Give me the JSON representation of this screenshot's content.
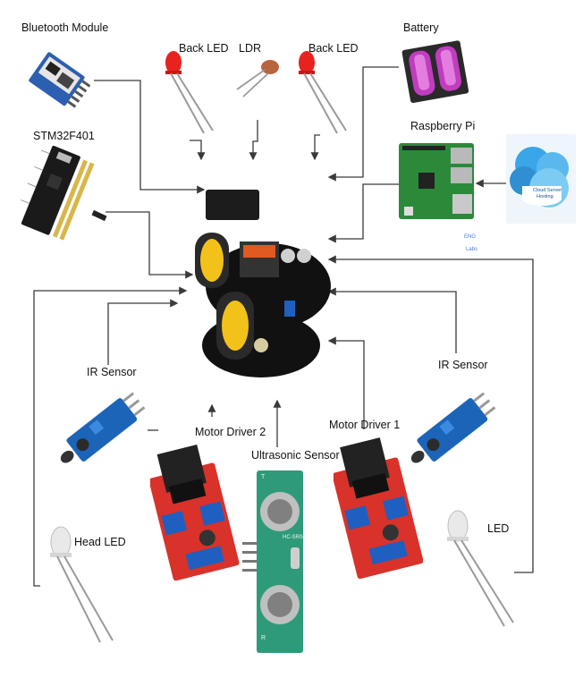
{
  "labels": {
    "bluetooth": "Bluetooth Module",
    "stm32": "STM32F401",
    "back_led_left": "Back LED",
    "ldr": "LDR",
    "back_led_right": "Back LED",
    "battery": "Battery",
    "raspberry_pi": "Raspberry Pi",
    "ir_sensor_left": "IR Sensor",
    "ir_sensor_right": "IR Sensor",
    "motor_driver_2": "Motor Driver 2",
    "motor_driver_1": "Motor Driver 1",
    "ultrasonic": "Ultrasonic Sensor",
    "head_led": "Head LED",
    "led": "LED"
  },
  "cloud": {
    "text_line1": "Cloud Server",
    "text_line2": "Hosting"
  },
  "pi_watermark": {
    "line1": "ENG",
    "line2": "Labs"
  },
  "ultrasonic_marks": {
    "model": "HC-SR04",
    "t": "T",
    "r": "R"
  },
  "colors": {
    "wire": "#3a3a3a",
    "led_red": "#e8231f",
    "board_blue": "#1c64b8",
    "board_red": "#d8322a",
    "pi_green": "#2a8a3a",
    "battery_pink": "#c03dbe",
    "cloud_blue": "#3aa6e8",
    "chassis_yellow": "#f2c21b"
  }
}
